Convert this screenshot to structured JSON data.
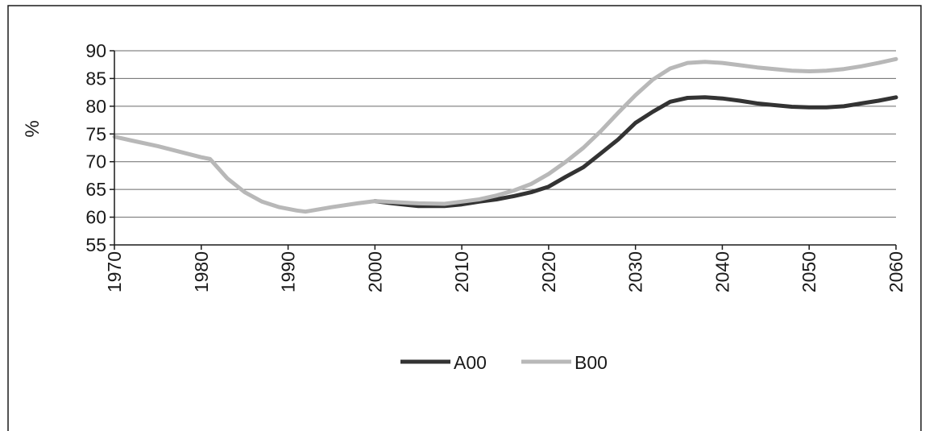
{
  "chart_data": {
    "type": "line",
    "title": "",
    "xlabel": "",
    "ylabel": "%",
    "xlim": [
      1970,
      2060
    ],
    "ylim": [
      55,
      90
    ],
    "x_ticks": [
      1970,
      1980,
      1990,
      2000,
      2010,
      2020,
      2030,
      2040,
      2050,
      2060
    ],
    "y_ticks": [
      55,
      60,
      65,
      70,
      75,
      80,
      85,
      90
    ],
    "grid": "horizontal",
    "legend_position": "bottom-center",
    "series": [
      {
        "name": "A00",
        "color": "#333333",
        "points": [
          [
            2000,
            62.9
          ],
          [
            2002,
            62.5
          ],
          [
            2005,
            62.0
          ],
          [
            2008,
            62.0
          ],
          [
            2010,
            62.3
          ],
          [
            2012,
            62.8
          ],
          [
            2014,
            63.2
          ],
          [
            2016,
            63.8
          ],
          [
            2018,
            64.5
          ],
          [
            2020,
            65.5
          ],
          [
            2022,
            67.3
          ],
          [
            2024,
            69.0
          ],
          [
            2026,
            71.5
          ],
          [
            2028,
            74.0
          ],
          [
            2030,
            77.0
          ],
          [
            2032,
            79.0
          ],
          [
            2034,
            80.8
          ],
          [
            2036,
            81.5
          ],
          [
            2038,
            81.6
          ],
          [
            2040,
            81.4
          ],
          [
            2042,
            81.0
          ],
          [
            2044,
            80.5
          ],
          [
            2046,
            80.2
          ],
          [
            2048,
            79.9
          ],
          [
            2050,
            79.8
          ],
          [
            2052,
            79.8
          ],
          [
            2054,
            80.0
          ],
          [
            2056,
            80.5
          ],
          [
            2058,
            81.0
          ],
          [
            2060,
            81.6
          ]
        ]
      },
      {
        "name": "B00",
        "color": "#b8b8b8",
        "points": [
          [
            1970,
            74.5
          ],
          [
            1972,
            73.8
          ],
          [
            1975,
            72.8
          ],
          [
            1978,
            71.6
          ],
          [
            1980,
            70.8
          ],
          [
            1981,
            70.5
          ],
          [
            1983,
            67.0
          ],
          [
            1985,
            64.5
          ],
          [
            1987,
            62.8
          ],
          [
            1989,
            61.8
          ],
          [
            1991,
            61.2
          ],
          [
            1992,
            61.0
          ],
          [
            1995,
            61.8
          ],
          [
            1998,
            62.5
          ],
          [
            2000,
            62.9
          ],
          [
            2005,
            62.5
          ],
          [
            2008,
            62.4
          ],
          [
            2010,
            62.8
          ],
          [
            2012,
            63.2
          ],
          [
            2014,
            63.9
          ],
          [
            2016,
            64.8
          ],
          [
            2018,
            66.0
          ],
          [
            2020,
            67.8
          ],
          [
            2022,
            70.0
          ],
          [
            2024,
            72.5
          ],
          [
            2026,
            75.5
          ],
          [
            2028,
            78.8
          ],
          [
            2030,
            82.0
          ],
          [
            2032,
            84.8
          ],
          [
            2034,
            86.8
          ],
          [
            2036,
            87.8
          ],
          [
            2038,
            88.0
          ],
          [
            2040,
            87.8
          ],
          [
            2042,
            87.4
          ],
          [
            2044,
            87.0
          ],
          [
            2046,
            86.7
          ],
          [
            2048,
            86.4
          ],
          [
            2050,
            86.3
          ],
          [
            2052,
            86.4
          ],
          [
            2054,
            86.7
          ],
          [
            2056,
            87.2
          ],
          [
            2058,
            87.8
          ],
          [
            2060,
            88.5
          ]
        ]
      }
    ]
  }
}
